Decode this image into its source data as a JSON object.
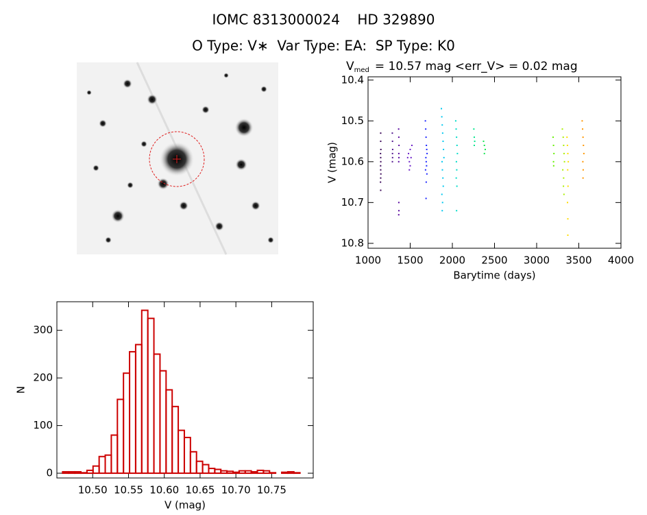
{
  "header": {
    "title": "IOMC 8313000024    HD 329890",
    "subtitle": "O Type: V∗  Var Type: EA:  SP Type: K0"
  },
  "chart_data": [
    {
      "type": "scatter",
      "title": {
        "main": "V",
        "sub": "med",
        "rest": "= 10.57 mag <err_V> = 0.02 mag"
      },
      "x_label": "Barytime (days)",
      "y_label": "V (mag)",
      "xlim": [
        1000,
        4000
      ],
      "xticks": [
        1000,
        1500,
        2000,
        2500,
        3000,
        3500,
        4000
      ],
      "ylim": [
        10.812,
        10.392
      ],
      "yticks": [
        10.4,
        10.5,
        10.6,
        10.7,
        10.8
      ],
      "series": [
        {
          "color": "#3c0a5a",
          "x": [
            1150,
            1150,
            1152,
            1148,
            1150,
            1151,
            1149,
            1150,
            1152,
            1150,
            1148,
            1150
          ],
          "values": [
            10.53,
            10.55,
            10.57,
            10.58,
            10.59,
            10.6,
            10.61,
            10.62,
            10.63,
            10.64,
            10.65,
            10.67
          ]
        },
        {
          "color": "#50148c",
          "x": [
            1288,
            1290,
            1292,
            1290,
            1291,
            1289
          ],
          "values": [
            10.53,
            10.55,
            10.57,
            10.58,
            10.59,
            10.6
          ]
        },
        {
          "color": "#5a0aa0",
          "x": [
            1363,
            1365,
            1367,
            1365,
            1366,
            1364,
            1365,
            1366,
            1364
          ],
          "values": [
            10.52,
            10.54,
            10.56,
            10.58,
            10.59,
            10.6,
            10.7,
            10.72,
            10.73
          ]
        },
        {
          "color": "#6a1ec8",
          "x": [
            1470,
            1480,
            1490,
            1500,
            1510,
            1520,
            1500,
            1490
          ],
          "values": [
            10.59,
            10.58,
            10.6,
            10.57,
            10.59,
            10.56,
            10.61,
            10.62
          ]
        },
        {
          "color": "#1e28ff",
          "x": [
            1680,
            1684,
            1688,
            1692,
            1696,
            1700,
            1686,
            1690,
            1694,
            1682,
            1698,
            1690,
            1688
          ],
          "values": [
            10.5,
            10.52,
            10.54,
            10.56,
            10.57,
            10.58,
            10.59,
            10.6,
            10.61,
            10.62,
            10.63,
            10.65,
            10.69
          ]
        },
        {
          "color": "#00c8f0",
          "x": [
            1870,
            1875,
            1880,
            1885,
            1890,
            1895,
            1900,
            1878,
            1882,
            1888,
            1892,
            1876,
            1884,
            1880
          ],
          "values": [
            10.47,
            10.49,
            10.51,
            10.53,
            10.55,
            10.57,
            10.59,
            10.6,
            10.62,
            10.64,
            10.66,
            10.68,
            10.7,
            10.72
          ]
        },
        {
          "color": "#00dcc8",
          "x": [
            2040,
            2045,
            2050,
            2055,
            2060,
            2048,
            2052,
            2046,
            2054,
            2050
          ],
          "values": [
            10.5,
            10.52,
            10.54,
            10.56,
            10.58,
            10.6,
            10.62,
            10.64,
            10.66,
            10.72
          ]
        },
        {
          "color": "#00e68c",
          "x": [
            2255,
            2260,
            2265,
            2260
          ],
          "values": [
            10.52,
            10.54,
            10.55,
            10.56
          ]
        },
        {
          "color": "#14e650",
          "x": [
            2370,
            2380,
            2390,
            2380
          ],
          "values": [
            10.55,
            10.56,
            10.57,
            10.58
          ]
        },
        {
          "color": "#64f000",
          "x": [
            3195,
            3200,
            3205,
            3200,
            3202
          ],
          "values": [
            10.54,
            10.56,
            10.58,
            10.6,
            10.61
          ]
        },
        {
          "color": "#aaf000",
          "x": [
            3305,
            3315,
            3320,
            3325,
            3330,
            3310,
            3320,
            3318,
            3324
          ],
          "values": [
            10.52,
            10.54,
            10.56,
            10.58,
            10.6,
            10.62,
            10.64,
            10.66,
            10.68
          ]
        },
        {
          "color": "#ffdc00",
          "x": [
            3360,
            3365,
            3370,
            3375,
            3368,
            3372,
            3366,
            3370,
            3370
          ],
          "values": [
            10.54,
            10.56,
            10.58,
            10.6,
            10.62,
            10.66,
            10.7,
            10.74,
            10.78
          ]
        },
        {
          "color": "#ff9600",
          "x": [
            3540,
            3545,
            3550,
            3555,
            3560,
            3548,
            3552,
            3550
          ],
          "values": [
            10.5,
            10.52,
            10.54,
            10.56,
            10.58,
            10.6,
            10.62,
            10.64
          ]
        }
      ]
    },
    {
      "type": "histogram",
      "x_label": "V (mag)",
      "y_label": "N",
      "color": "#cc0000",
      "bins": [
        10.458,
        10.4665,
        10.475,
        10.4835,
        10.492,
        10.5005,
        10.509,
        10.5175,
        10.526,
        10.5345,
        10.543,
        10.5515,
        10.56,
        10.5685,
        10.577,
        10.5855,
        10.594,
        10.6025,
        10.611,
        10.6195,
        10.628,
        10.6365,
        10.645,
        10.6535,
        10.662,
        10.6705,
        10.679,
        10.6875,
        10.696,
        10.7045,
        10.713,
        10.7215,
        10.73,
        10.7385,
        10.747,
        10.7555,
        10.764,
        10.7725,
        10.781,
        10.7895
      ],
      "values": [
        3,
        3,
        3,
        1,
        6,
        15,
        35,
        38,
        80,
        155,
        210,
        255,
        270,
        342,
        325,
        250,
        215,
        175,
        140,
        90,
        75,
        45,
        25,
        18,
        10,
        8,
        5,
        4,
        2,
        5,
        5,
        3,
        6,
        5,
        1,
        0,
        2,
        3,
        1
      ],
      "xlim": [
        10.45,
        10.808
      ],
      "xticks": [
        {
          "value": 10.5,
          "label": "10.50"
        },
        10.55,
        {
          "value": 10.6,
          "label": "10.60"
        },
        10.65,
        {
          "value": 10.7,
          "label": "10.70"
        },
        10.75
      ],
      "ylim": [
        -10,
        360
      ],
      "yticks": [
        0,
        100,
        200,
        300
      ]
    }
  ]
}
